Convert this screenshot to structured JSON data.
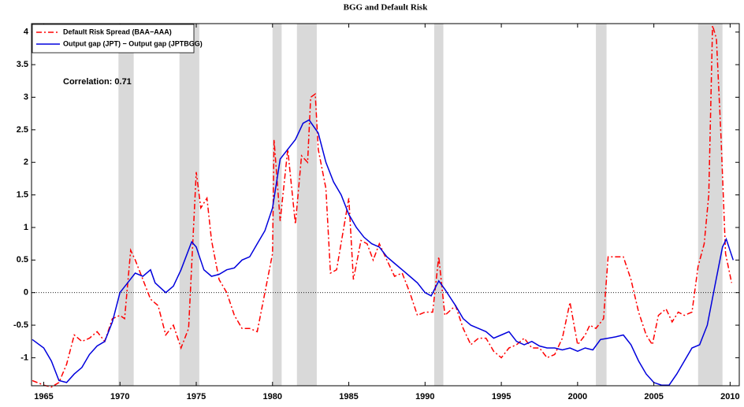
{
  "chart_data": {
    "type": "line",
    "title": "BGG and Default Risk",
    "annotation": "Correlation: 0.71",
    "xlim": [
      1964.2,
      2010.6
    ],
    "xticks": [
      1965,
      1970,
      1975,
      1980,
      1985,
      1990,
      1995,
      2000,
      2005,
      2010
    ],
    "ylim": [
      -1.43,
      4.13
    ],
    "yticks": [
      -1,
      -0.5,
      0,
      0.5,
      1,
      1.5,
      2,
      2.5,
      3,
      3.5,
      4
    ],
    "reference_line": 0,
    "shaded_regions": [
      [
        1969.9,
        1970.9
      ],
      [
        1973.9,
        1975.2
      ],
      [
        1980.0,
        1980.6
      ],
      [
        1981.6,
        1982.9
      ],
      [
        1990.6,
        1991.2
      ],
      [
        2001.2,
        2001.9
      ],
      [
        2007.9,
        2009.5
      ]
    ],
    "shade_color": "#d9d9d9",
    "legend": "upper left",
    "series": [
      {
        "name": "Default Risk Spread (BAA−AAA)",
        "color": "#ff0000",
        "style": "dashdot",
        "x": [
          1964.25,
          1965,
          1965.5,
          1966,
          1966.5,
          1967,
          1967.5,
          1968,
          1968.5,
          1969,
          1969.5,
          1970,
          1970.3,
          1970.7,
          1971,
          1971.5,
          1972,
          1972.5,
          1973,
          1973.5,
          1974,
          1974.5,
          1975,
          1975.3,
          1975.7,
          1976,
          1976.5,
          1977,
          1977.5,
          1978,
          1978.5,
          1979,
          1979.5,
          1980,
          1980.1,
          1980.5,
          1981,
          1981.5,
          1981.9,
          1982.3,
          1982.5,
          1982.8,
          1983,
          1983.5,
          1983.8,
          1984.2,
          1984.6,
          1985,
          1985.3,
          1985.8,
          1986.2,
          1986.6,
          1987,
          1987.5,
          1988,
          1988.5,
          1989,
          1989.5,
          1990,
          1990.5,
          1990.9,
          1991.3,
          1992,
          1992.5,
          1993,
          1993.5,
          1994,
          1994.5,
          1995,
          1995.5,
          1996,
          1996.5,
          1997,
          1997.5,
          1998,
          1998.5,
          1999,
          1999.5,
          2000,
          2000.5,
          2000.8,
          2001.2,
          2001.7,
          2002,
          2002.5,
          2003,
          2003.5,
          2004,
          2004.5,
          2004.9,
          2005.3,
          2005.8,
          2006.2,
          2006.6,
          2007,
          2007.5,
          2007.9,
          2008.3,
          2008.6,
          2008.85,
          2009.1,
          2009.4,
          2009.7,
          2010.1
        ],
        "values": [
          -1.35,
          -1.42,
          -1.45,
          -1.38,
          -1.1,
          -0.65,
          -0.75,
          -0.7,
          -0.6,
          -0.75,
          -0.4,
          -0.35,
          -0.4,
          0.65,
          0.5,
          0.2,
          -0.1,
          -0.2,
          -0.65,
          -0.5,
          -0.85,
          -0.55,
          1.85,
          1.3,
          1.45,
          0.8,
          0.2,
          0.0,
          -0.35,
          -0.55,
          -0.55,
          -0.6,
          0.0,
          0.6,
          2.35,
          1.1,
          2.2,
          1.05,
          2.1,
          2.0,
          3.0,
          3.05,
          2.2,
          1.6,
          0.3,
          0.35,
          0.9,
          1.45,
          0.2,
          0.8,
          0.75,
          0.5,
          0.75,
          0.5,
          0.25,
          0.3,
          0.0,
          -0.35,
          -0.3,
          -0.3,
          0.55,
          -0.35,
          -0.2,
          -0.55,
          -0.8,
          -0.7,
          -0.7,
          -0.9,
          -1.0,
          -0.85,
          -0.8,
          -0.7,
          -0.85,
          -0.85,
          -1.0,
          -0.95,
          -0.7,
          -0.15,
          -0.8,
          -0.65,
          -0.5,
          -0.55,
          -0.4,
          0.55,
          0.55,
          0.55,
          0.2,
          -0.3,
          -0.65,
          -0.8,
          -0.35,
          -0.25,
          -0.45,
          -0.3,
          -0.35,
          -0.3,
          0.4,
          0.75,
          1.5,
          4.1,
          3.9,
          2.4,
          0.6,
          0.15
        ]
      },
      {
        "name": "Output gap (JPT) − Output gap (JPTBGG)",
        "color": "#0000dd",
        "style": "solid",
        "x": [
          1964.25,
          1965,
          1965.5,
          1966,
          1966.5,
          1967,
          1967.5,
          1968,
          1968.5,
          1969,
          1969.5,
          1970,
          1970.5,
          1971,
          1971.5,
          1972,
          1972.3,
          1973,
          1973.5,
          1974,
          1974.7,
          1975,
          1975.5,
          1976,
          1976.5,
          1977,
          1977.5,
          1978,
          1978.5,
          1979,
          1979.5,
          1980,
          1980.5,
          1981,
          1981.5,
          1982,
          1982.4,
          1983,
          1983.5,
          1984,
          1984.5,
          1985,
          1985.5,
          1986,
          1986.5,
          1987,
          1987.5,
          1988,
          1988.5,
          1989,
          1989.5,
          1990,
          1990.4,
          1990.9,
          1991.3,
          1992,
          1992.5,
          1993,
          1993.5,
          1994,
          1994.5,
          1995,
          1995.5,
          1996,
          1996.5,
          1997,
          1997.5,
          1998,
          1998.5,
          1999,
          1999.5,
          2000,
          2000.5,
          2001,
          2001.5,
          2002,
          2002.5,
          2003,
          2003.5,
          2004,
          2004.5,
          2005,
          2005.5,
          2006,
          2006.5,
          2007,
          2007.5,
          2008,
          2008.5,
          2009,
          2009.5,
          2009.75,
          2010.2
        ],
        "values": [
          -0.72,
          -0.85,
          -1.05,
          -1.35,
          -1.38,
          -1.25,
          -1.15,
          -0.95,
          -0.82,
          -0.75,
          -0.45,
          0.0,
          0.15,
          0.3,
          0.25,
          0.35,
          0.15,
          0.0,
          0.1,
          0.35,
          0.78,
          0.7,
          0.35,
          0.25,
          0.28,
          0.35,
          0.38,
          0.5,
          0.55,
          0.75,
          0.95,
          1.3,
          2.05,
          2.2,
          2.35,
          2.6,
          2.65,
          2.45,
          2.0,
          1.7,
          1.5,
          1.2,
          1.0,
          0.85,
          0.75,
          0.7,
          0.55,
          0.45,
          0.35,
          0.25,
          0.15,
          0.0,
          -0.05,
          0.18,
          0.05,
          -0.2,
          -0.4,
          -0.5,
          -0.55,
          -0.6,
          -0.7,
          -0.65,
          -0.6,
          -0.75,
          -0.8,
          -0.75,
          -0.82,
          -0.85,
          -0.85,
          -0.88,
          -0.85,
          -0.9,
          -0.85,
          -0.88,
          -0.72,
          -0.7,
          -0.68,
          -0.65,
          -0.8,
          -1.05,
          -1.25,
          -1.38,
          -1.42,
          -1.42,
          -1.25,
          -1.05,
          -0.85,
          -0.8,
          -0.5,
          0.1,
          0.7,
          0.82,
          0.5
        ]
      }
    ]
  }
}
